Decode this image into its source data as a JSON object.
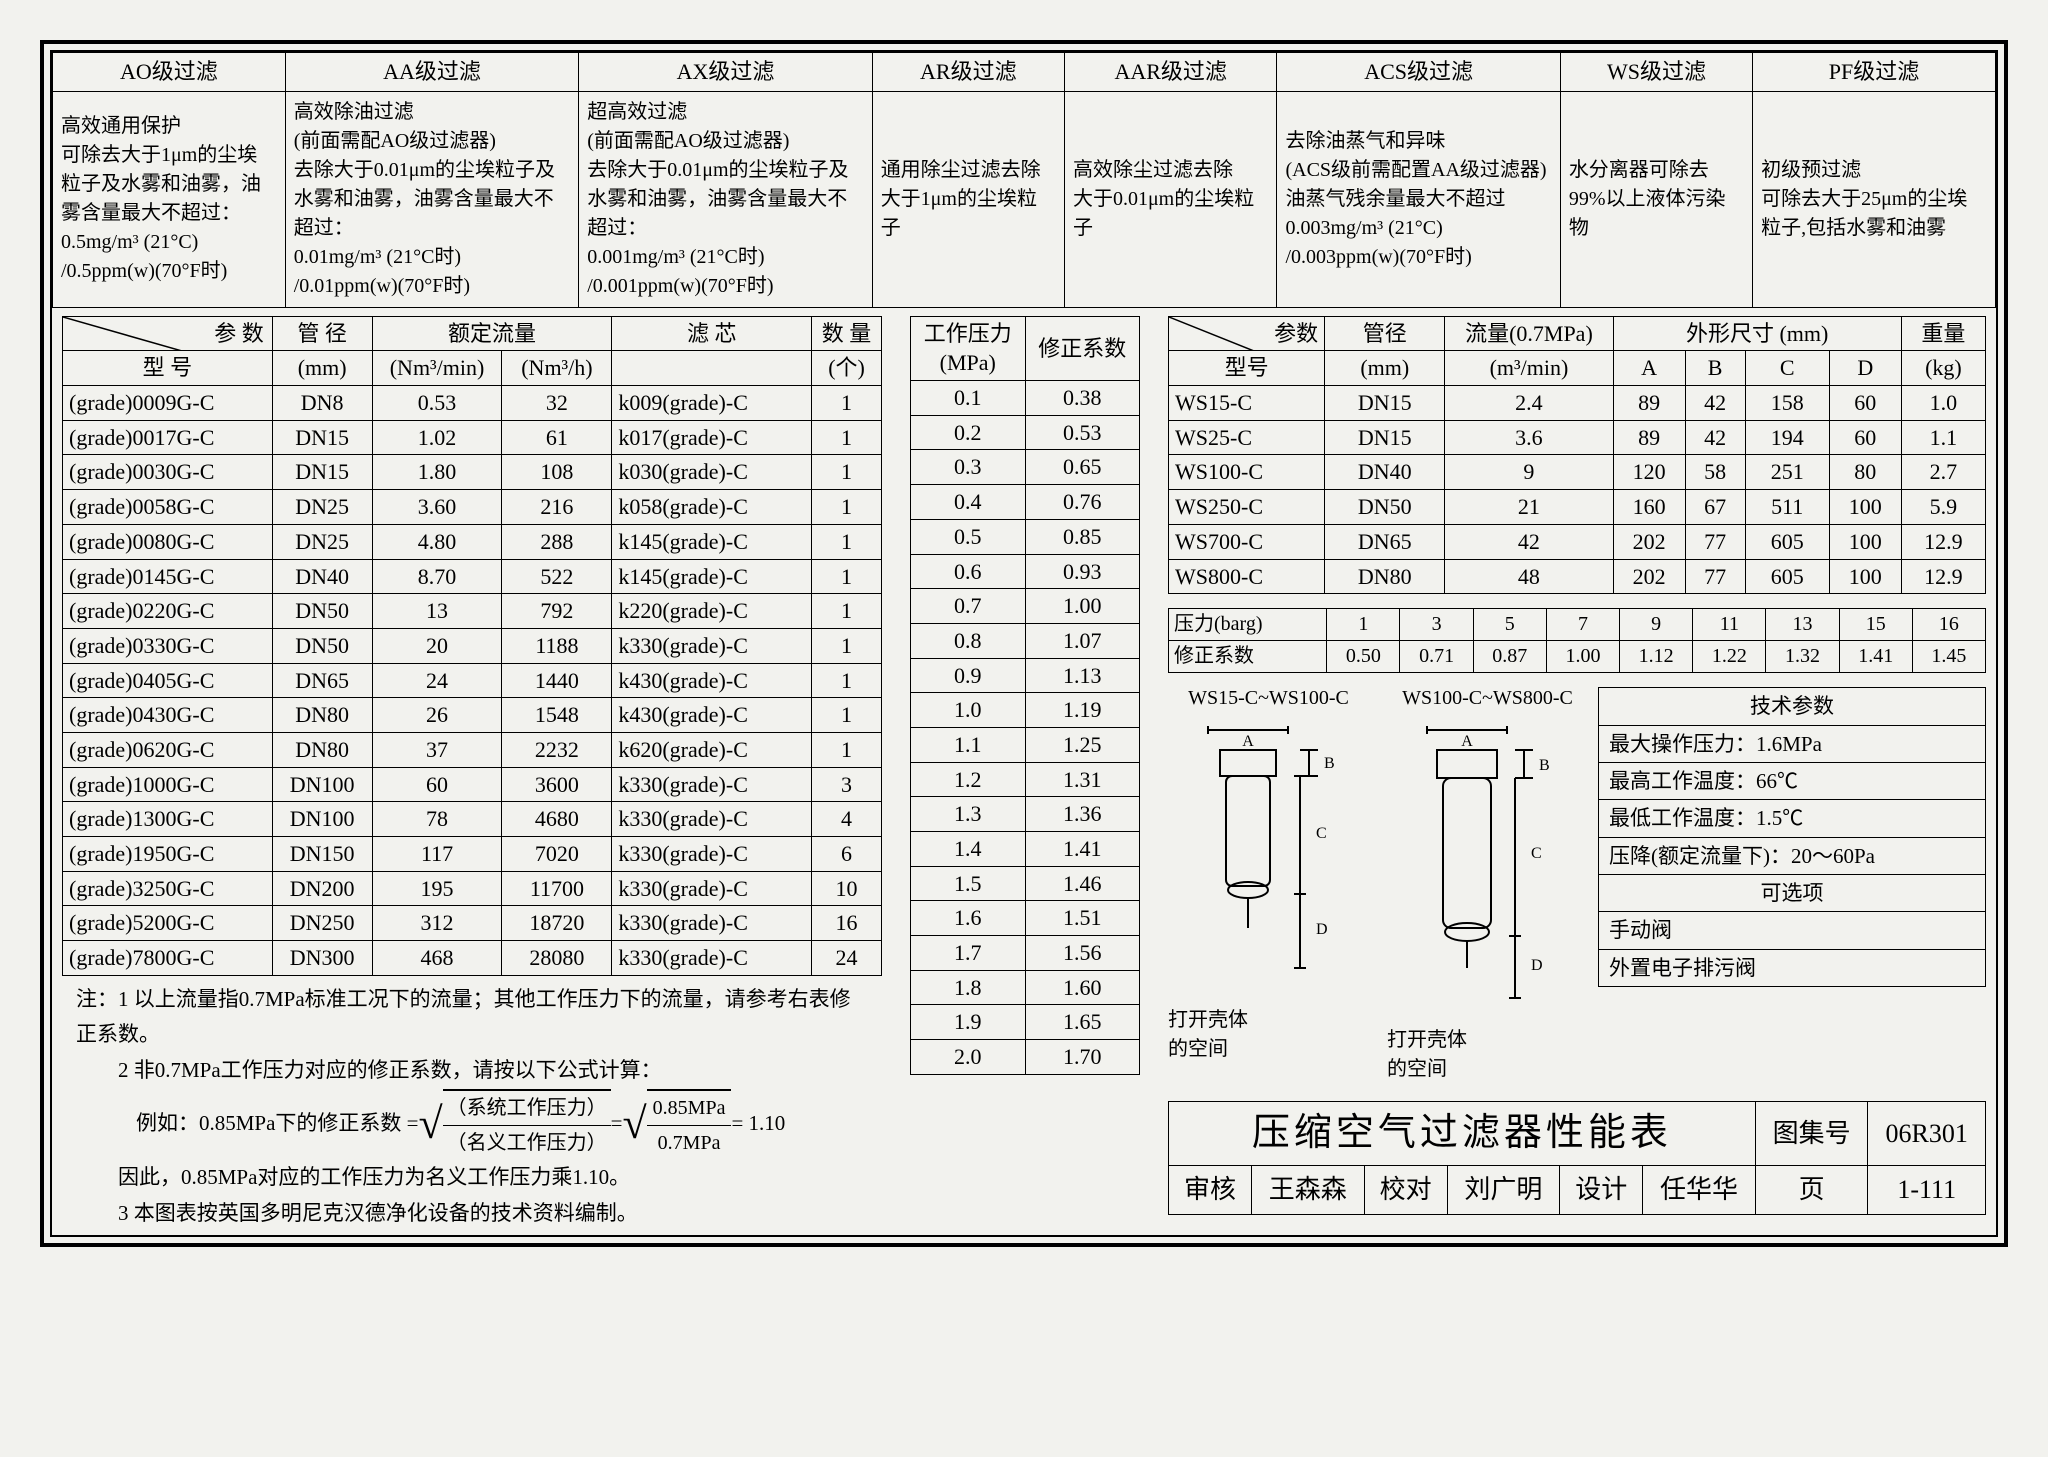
{
  "filter_grades": {
    "headers": [
      "AO级过滤",
      "AA级过滤",
      "AX级过滤",
      "AR级过滤",
      "AAR级过滤",
      "ACS级过滤",
      "WS级过滤",
      "PF级过滤"
    ],
    "descs": [
      "高效通用保护\n可除去大于1μm的尘埃粒子及水雾和油雾，油雾含量最大不超过：\n0.5mg/m³ (21°C)\n/0.5ppm(w)(70°F时)",
      "高效除油过滤\n(前面需配AO级过滤器)\n去除大于0.01μm的尘埃粒子及水雾和油雾，油雾含量最大不超过：\n0.01mg/m³ (21°C时)\n/0.01ppm(w)(70°F时)",
      "超高效过滤\n(前面需配AO级过滤器)\n去除大于0.01μm的尘埃粒子及水雾和油雾，油雾含量最大不超过：\n0.001mg/m³ (21°C时)\n/0.001ppm(w)(70°F时)",
      "通用除尘过滤去除\n大于1μm的尘埃粒子",
      "高效除尘过滤去除\n大于0.01μm的尘埃粒子",
      "去除油蒸气和异味\n(ACS级前需配置AA级过滤器)\n油蒸气残余量最大不超过\n0.003mg/m³ (21°C)\n/0.003ppm(w)(70°F时)",
      "水分离器可除去\n99%以上液体污染物",
      "初级预过滤\n可除去大于25μm的尘埃\n粒子,包括水雾和油雾"
    ]
  },
  "main_table": {
    "header_top": [
      "参  数",
      "管  径",
      "额定流量",
      "",
      "滤  芯",
      "数  量"
    ],
    "header_sub": [
      "型  号",
      "(mm)",
      "(Nm³/min)",
      "(Nm³/h)",
      "",
      "(个)"
    ],
    "rows": [
      [
        "(grade)0009G-C",
        "DN8",
        "0.53",
        "32",
        "k009(grade)-C",
        "1"
      ],
      [
        "(grade)0017G-C",
        "DN15",
        "1.02",
        "61",
        "k017(grade)-C",
        "1"
      ],
      [
        "(grade)0030G-C",
        "DN15",
        "1.80",
        "108",
        "k030(grade)-C",
        "1"
      ],
      [
        "(grade)0058G-C",
        "DN25",
        "3.60",
        "216",
        "k058(grade)-C",
        "1"
      ],
      [
        "(grade)0080G-C",
        "DN25",
        "4.80",
        "288",
        "k145(grade)-C",
        "1"
      ],
      [
        "(grade)0145G-C",
        "DN40",
        "8.70",
        "522",
        "k145(grade)-C",
        "1"
      ],
      [
        "(grade)0220G-C",
        "DN50",
        "13",
        "792",
        "k220(grade)-C",
        "1"
      ],
      [
        "(grade)0330G-C",
        "DN50",
        "20",
        "1188",
        "k330(grade)-C",
        "1"
      ],
      [
        "(grade)0405G-C",
        "DN65",
        "24",
        "1440",
        "k430(grade)-C",
        "1"
      ],
      [
        "(grade)0430G-C",
        "DN80",
        "26",
        "1548",
        "k430(grade)-C",
        "1"
      ],
      [
        "(grade)0620G-C",
        "DN80",
        "37",
        "2232",
        "k620(grade)-C",
        "1"
      ],
      [
        "(grade)1000G-C",
        "DN100",
        "60",
        "3600",
        "k330(grade)-C",
        "3"
      ],
      [
        "(grade)1300G-C",
        "DN100",
        "78",
        "4680",
        "k330(grade)-C",
        "4"
      ],
      [
        "(grade)1950G-C",
        "DN150",
        "117",
        "7020",
        "k330(grade)-C",
        "6"
      ],
      [
        "(grade)3250G-C",
        "DN200",
        "195",
        "11700",
        "k330(grade)-C",
        "10"
      ],
      [
        "(grade)5200G-C",
        "DN250",
        "312",
        "18720",
        "k330(grade)-C",
        "16"
      ],
      [
        "(grade)7800G-C",
        "DN300",
        "468",
        "28080",
        "k330(grade)-C",
        "24"
      ]
    ]
  },
  "corr_table": {
    "header": [
      "工作压力\n(MPa)",
      "修正系数"
    ],
    "rows": [
      [
        "0.1",
        "0.38"
      ],
      [
        "0.2",
        "0.53"
      ],
      [
        "0.3",
        "0.65"
      ],
      [
        "0.4",
        "0.76"
      ],
      [
        "0.5",
        "0.85"
      ],
      [
        "0.6",
        "0.93"
      ],
      [
        "0.7",
        "1.00"
      ],
      [
        "0.8",
        "1.07"
      ],
      [
        "0.9",
        "1.13"
      ],
      [
        "1.0",
        "1.19"
      ],
      [
        "1.1",
        "1.25"
      ],
      [
        "1.2",
        "1.31"
      ],
      [
        "1.3",
        "1.36"
      ],
      [
        "1.4",
        "1.41"
      ],
      [
        "1.5",
        "1.46"
      ],
      [
        "1.6",
        "1.51"
      ],
      [
        "1.7",
        "1.56"
      ],
      [
        "1.8",
        "1.60"
      ],
      [
        "1.9",
        "1.65"
      ],
      [
        "2.0",
        "1.70"
      ]
    ]
  },
  "ws_table": {
    "header_top": [
      "参数",
      "管径",
      "流量(0.7MPa)",
      "外形尺寸  (mm)",
      "重量"
    ],
    "header_sub": [
      "型号",
      "(mm)",
      "(m³/min)",
      "A",
      "B",
      "C",
      "D",
      "(kg)"
    ],
    "rows": [
      [
        "WS15-C",
        "DN15",
        "2.4",
        "89",
        "42",
        "158",
        "60",
        "1.0"
      ],
      [
        "WS25-C",
        "DN15",
        "3.6",
        "89",
        "42",
        "194",
        "60",
        "1.1"
      ],
      [
        "WS100-C",
        "DN40",
        "9",
        "120",
        "58",
        "251",
        "80",
        "2.7"
      ],
      [
        "WS250-C",
        "DN50",
        "21",
        "160",
        "67",
        "511",
        "100",
        "5.9"
      ],
      [
        "WS700-C",
        "DN65",
        "42",
        "202",
        "77",
        "605",
        "100",
        "12.9"
      ],
      [
        "WS800-C",
        "DN80",
        "48",
        "202",
        "77",
        "605",
        "100",
        "12.9"
      ]
    ]
  },
  "barg_table": {
    "rows": [
      [
        "压力(barg)",
        "1",
        "3",
        "5",
        "7",
        "9",
        "11",
        "13",
        "15",
        "16"
      ],
      [
        "修正系数",
        "0.50",
        "0.71",
        "0.87",
        "1.00",
        "1.12",
        "1.22",
        "1.32",
        "1.41",
        "1.45"
      ]
    ]
  },
  "diagram_labels": {
    "left_title": "WS15-C~WS100-C",
    "right_title": "WS100-C~WS800-C",
    "open_space": "打开壳体\n的空间"
  },
  "tech_params": {
    "title": "技术参数",
    "rows": [
      "最大操作压力：1.6MPa",
      "最高工作温度：66℃",
      "最低工作温度：1.5℃",
      "压降(额定流量下)：20～60Pa"
    ],
    "opt_title": "可选项",
    "opts": [
      "手动阀",
      "外置电子排污阀"
    ]
  },
  "notes": {
    "n1": "注：1 以上流量指0.7MPa标准工况下的流量；其他工作压力下的流量，请参考右表修正系数。",
    "n2": "　　2 非0.7MPa工作压力对应的修正系数，请按以下公式计算：",
    "n3a": "例如：0.85MPa下的修正系数 = ",
    "n3frac1t": "（系统工作压力）",
    "n3frac1b": "（名义工作压力）",
    "n3eq": " = ",
    "n3frac2t": "0.85MPa",
    "n3frac2b": "0.7MPa",
    "n3r": " = 1.10",
    "n4": "　　因此，0.85MPa对应的工作压力为名义工作压力乘1.10。",
    "n5": "　　3 本图表按英国多明尼克汉德净化设备的技术资料编制。"
  },
  "title_block": {
    "title": "压缩空气过滤器性能表",
    "album_lbl": "图集号",
    "album_val": "06R301",
    "check_lbl": "审核",
    "check_name": "王森森",
    "proof_lbl": "校对",
    "proof_name": "刘广明",
    "design_lbl": "设计",
    "design_name": "任华华",
    "page_lbl": "页",
    "page_val": "1-111"
  }
}
